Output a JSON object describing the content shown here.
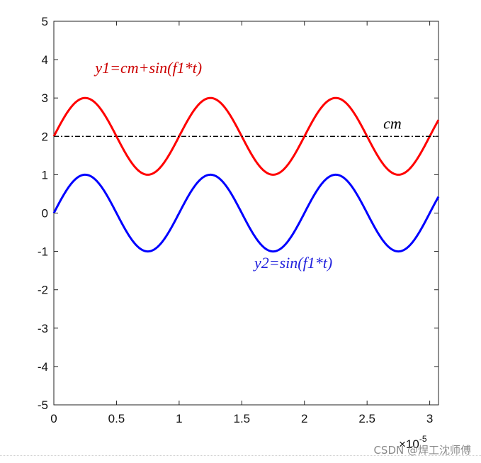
{
  "chart_data": {
    "type": "line",
    "x_unit_multiplier_label": "×10",
    "x_unit_multiplier_exponent": "-5",
    "xlim": [
      0,
      3.07
    ],
    "ylim": [
      -5,
      5
    ],
    "x_ticks": [
      "0",
      "0.5",
      "1",
      "1.5",
      "2",
      "2.5",
      "3"
    ],
    "y_ticks": [
      "5",
      "4",
      "3",
      "2",
      "1",
      "0",
      "-1",
      "-2",
      "-3",
      "-4",
      "-5"
    ],
    "series": [
      {
        "name": "y1=cm+sin(f1*t)",
        "color": "#ff0000",
        "style": "solid",
        "function": "2 + sin(2*pi*x)",
        "x": [
          0,
          0.25,
          0.5,
          0.75,
          1.0,
          1.25,
          1.5,
          1.75,
          2.0,
          2.25,
          2.5,
          2.75,
          3.0,
          3.07
        ],
        "y": [
          2,
          3,
          2,
          1,
          2,
          3,
          2,
          1,
          2,
          3,
          2,
          1,
          2,
          2.43
        ]
      },
      {
        "name": "y2=sin(f1*t)",
        "color": "#0000ff",
        "style": "solid",
        "function": "sin(2*pi*x)",
        "x": [
          0,
          0.25,
          0.5,
          0.75,
          1.0,
          1.25,
          1.5,
          1.75,
          2.0,
          2.25,
          2.5,
          2.75,
          3.0,
          3.07
        ],
        "y": [
          0,
          1,
          0,
          -1,
          0,
          1,
          0,
          -1,
          0,
          1,
          0,
          -1,
          0,
          0.43
        ]
      },
      {
        "name": "cm",
        "color": "#000000",
        "style": "dash-dot",
        "x": [
          0,
          3.07
        ],
        "y": [
          2,
          2
        ]
      }
    ],
    "annotations": [
      {
        "text": "y1=cm+sin(f1*t)",
        "x": 0.33,
        "y": 3.65,
        "color": "#cc0000"
      },
      {
        "text": "cm",
        "x": 2.63,
        "y": 2.2,
        "color": "#000000"
      },
      {
        "text": "y2=sin(f1*t)",
        "x": 1.6,
        "y": -1.43,
        "color": "#2222dd"
      }
    ],
    "grid": false
  },
  "watermark": "CSDN @焊工沈师傅"
}
